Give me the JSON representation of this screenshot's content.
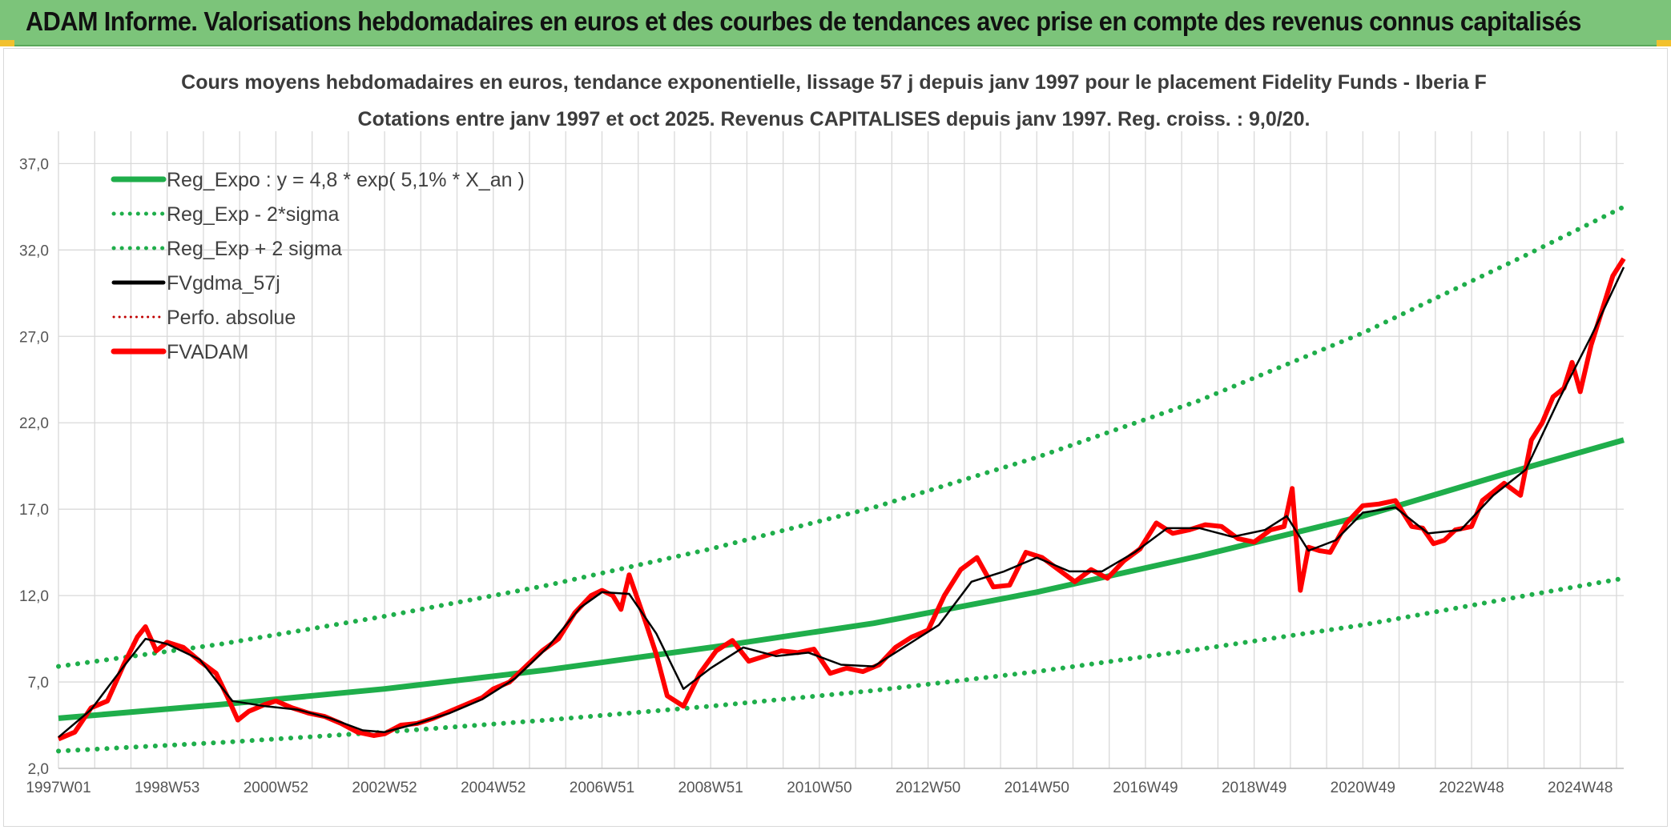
{
  "header": {
    "title": "ADAM Informe. Valorisations hebdomadaires en euros et des courbes de tendances avec prise en compte des revenus connus capitalisés"
  },
  "colors": {
    "banner": "#7cc47a",
    "reg": "#1fae4b",
    "dot": "#1fae4b",
    "gdma": "#000000",
    "adam": "#ff0000",
    "perfo": "#c00000",
    "grid": "#d9d9d9"
  },
  "chart_data": {
    "type": "line",
    "title_line1": "Cours moyens hebdomadaires en euros, tendance exponentielle, lissage 57 j depuis janv 1997 pour le placement Fidelity Funds - Iberia F",
    "title_line2": "Cotations entre janv 1997 et oct 2025. Revenus CAPITALISES depuis janv 1997. Reg. croiss. : 9,0/20.",
    "x_range": [
      1997.0,
      2025.8
    ],
    "ylim": [
      2.0,
      38.5
    ],
    "y_ticks": [
      2.0,
      7.0,
      12.0,
      17.0,
      22.0,
      27.0,
      32.0,
      37.0
    ],
    "y_tick_labels": [
      "2,0",
      "7,0",
      "12,0",
      "17,0",
      "22,0",
      "27,0",
      "32,0",
      "37,0"
    ],
    "x_ticks": [
      1997.0,
      1999.0,
      2001.0,
      2003.0,
      2005.0,
      2007.0,
      2009.0,
      2011.0,
      2013.0,
      2015.0,
      2017.0,
      2019.0,
      2021.0,
      2023.0,
      2025.0
    ],
    "x_tick_labels": [
      "1997W01",
      "1998W53",
      "2000W52",
      "2002W52",
      "2004W52",
      "2006W51",
      "2008W51",
      "2010W50",
      "2012W50",
      "2014W50",
      "2016W49",
      "2018W49",
      "2020W49",
      "2022W48",
      "2024W48"
    ],
    "grid": true,
    "legend_position": "top-left",
    "legend": [
      {
        "key": "reg",
        "label": "Reg_Expo : y = 4,8 * exp( 5,1% *  X_an )",
        "style": "solid-thick",
        "color": "#1fae4b"
      },
      {
        "key": "minus",
        "label": "Reg_Exp - 2*sigma",
        "style": "dotted",
        "color": "#1fae4b"
      },
      {
        "key": "plus",
        "label": "Reg_Exp + 2 sigma",
        "style": "dotted",
        "color": "#1fae4b"
      },
      {
        "key": "gdma",
        "label": "FVgdma_57j",
        "style": "solid",
        "color": "#000000"
      },
      {
        "key": "perfo",
        "label": "Perfo. absolue",
        "style": "dotted-thin",
        "color": "#c00000"
      },
      {
        "key": "adam",
        "label": "FVADAM",
        "style": "solid-thick",
        "color": "#ff0000"
      }
    ],
    "series": [
      {
        "name": "Reg_Expo",
        "x": [
          1997.0,
          2000.0,
          2003.0,
          2006.0,
          2009.0,
          2012.0,
          2015.0,
          2018.0,
          2021.0,
          2024.0,
          2025.8
        ],
        "y": [
          4.9,
          5.7,
          6.6,
          7.7,
          9.0,
          10.4,
          12.2,
          14.3,
          16.6,
          19.4,
          21.0
        ]
      },
      {
        "name": "Reg_Exp - 2*sigma",
        "x": [
          1997.0,
          2000.0,
          2003.0,
          2006.0,
          2009.0,
          2012.0,
          2015.0,
          2018.0,
          2021.0,
          2024.0,
          2025.8
        ],
        "y": [
          3.0,
          3.5,
          4.1,
          4.8,
          5.6,
          6.5,
          7.6,
          8.9,
          10.3,
          12.0,
          13.0
        ]
      },
      {
        "name": "Reg_Exp + 2 sigma",
        "x": [
          1997.0,
          2000.0,
          2003.0,
          2006.0,
          2009.0,
          2012.0,
          2015.0,
          2018.0,
          2021.0,
          2024.0,
          2025.8
        ],
        "y": [
          7.9,
          9.2,
          10.8,
          12.6,
          14.7,
          17.1,
          20.0,
          23.3,
          27.2,
          31.7,
          34.5
        ]
      },
      {
        "name": "FVADAM",
        "x": [
          1997.0,
          1997.3,
          1997.6,
          1997.9,
          1998.2,
          1998.45,
          1998.6,
          1998.8,
          1999.0,
          1999.3,
          1999.6,
          1999.9,
          2000.1,
          2000.3,
          2000.5,
          2000.8,
          2001.0,
          2001.3,
          2001.6,
          2001.9,
          2002.2,
          2002.5,
          2002.8,
          2003.0,
          2003.3,
          2003.6,
          2003.9,
          2004.2,
          2004.5,
          2004.8,
          2005.0,
          2005.3,
          2005.6,
          2005.9,
          2006.2,
          2006.5,
          2006.8,
          2007.0,
          2007.2,
          2007.35,
          2007.5,
          2007.8,
          2008.0,
          2008.2,
          2008.5,
          2008.8,
          2009.1,
          2009.4,
          2009.7,
          2010.0,
          2010.3,
          2010.6,
          2010.9,
          2011.2,
          2011.5,
          2011.8,
          2012.1,
          2012.4,
          2012.7,
          2013.0,
          2013.3,
          2013.6,
          2013.9,
          2014.2,
          2014.5,
          2014.8,
          2015.1,
          2015.4,
          2015.7,
          2016.0,
          2016.3,
          2016.6,
          2016.9,
          2017.2,
          2017.5,
          2017.8,
          2018.1,
          2018.4,
          2018.7,
          2019.0,
          2019.3,
          2019.55,
          2019.7,
          2019.85,
          2020.0,
          2020.2,
          2020.4,
          2020.7,
          2021.0,
          2021.3,
          2021.6,
          2021.9,
          2022.1,
          2022.3,
          2022.5,
          2022.7,
          2023.0,
          2023.2,
          2023.4,
          2023.6,
          2023.9,
          2024.1,
          2024.3,
          2024.5,
          2024.7,
          2024.85,
          2025.0,
          2025.2,
          2025.4,
          2025.6,
          2025.8
        ],
        "y": [
          3.7,
          4.1,
          5.5,
          5.9,
          8.0,
          9.6,
          10.2,
          8.8,
          9.3,
          9.0,
          8.2,
          7.5,
          6.2,
          4.8,
          5.3,
          5.7,
          5.9,
          5.5,
          5.2,
          5.0,
          4.6,
          4.1,
          3.9,
          4.0,
          4.5,
          4.6,
          4.9,
          5.3,
          5.7,
          6.1,
          6.6,
          7.0,
          7.9,
          8.8,
          9.5,
          11.0,
          12.0,
          12.3,
          12.0,
          11.2,
          13.2,
          10.5,
          8.6,
          6.2,
          5.6,
          7.5,
          8.8,
          9.4,
          8.2,
          8.5,
          8.8,
          8.7,
          8.9,
          7.5,
          7.8,
          7.6,
          8.0,
          9.0,
          9.6,
          10.0,
          12.0,
          13.5,
          14.2,
          12.5,
          12.6,
          14.5,
          14.2,
          13.5,
          12.8,
          13.5,
          13.0,
          14.0,
          14.7,
          16.2,
          15.6,
          15.8,
          16.1,
          16.0,
          15.3,
          15.1,
          15.8,
          16.0,
          18.2,
          12.3,
          14.8,
          14.6,
          14.5,
          16.2,
          17.2,
          17.3,
          17.5,
          16.0,
          15.9,
          15.0,
          15.2,
          15.8,
          16.0,
          17.5,
          18.0,
          18.5,
          17.8,
          21.0,
          22.0,
          23.5,
          24.0,
          25.5,
          23.8,
          26.5,
          28.5,
          30.5,
          31.5
        ]
      },
      {
        "name": "FVgdma_57j",
        "x": [
          1997.0,
          1997.6,
          1998.2,
          1998.6,
          1999.0,
          1999.6,
          2000.2,
          2000.8,
          2001.4,
          2002.0,
          2002.6,
          2003.0,
          2003.6,
          2004.2,
          2004.8,
          2005.4,
          2006.0,
          2006.6,
          2007.0,
          2007.5,
          2008.0,
          2008.5,
          2009.0,
          2009.6,
          2010.2,
          2010.8,
          2011.4,
          2012.0,
          2012.6,
          2013.2,
          2013.8,
          2014.4,
          2015.0,
          2015.6,
          2016.2,
          2016.8,
          2017.4,
          2018.0,
          2018.6,
          2019.2,
          2019.6,
          2020.0,
          2020.5,
          2021.0,
          2021.6,
          2022.2,
          2022.8,
          2023.4,
          2024.0,
          2024.6,
          2025.2,
          2025.8
        ],
        "y": [
          3.8,
          5.4,
          7.9,
          9.5,
          9.2,
          8.3,
          5.9,
          5.6,
          5.4,
          4.9,
          4.2,
          4.1,
          4.6,
          5.2,
          6.0,
          7.2,
          9.0,
          11.3,
          12.2,
          12.1,
          9.8,
          6.6,
          7.8,
          9.0,
          8.5,
          8.7,
          8.0,
          7.9,
          9.1,
          10.3,
          12.8,
          13.4,
          14.2,
          13.4,
          13.4,
          14.5,
          15.9,
          15.9,
          15.4,
          15.8,
          16.6,
          14.6,
          15.2,
          16.8,
          17.1,
          15.6,
          15.8,
          17.8,
          19.3,
          23.3,
          27.0,
          31.0
        ]
      }
    ]
  }
}
